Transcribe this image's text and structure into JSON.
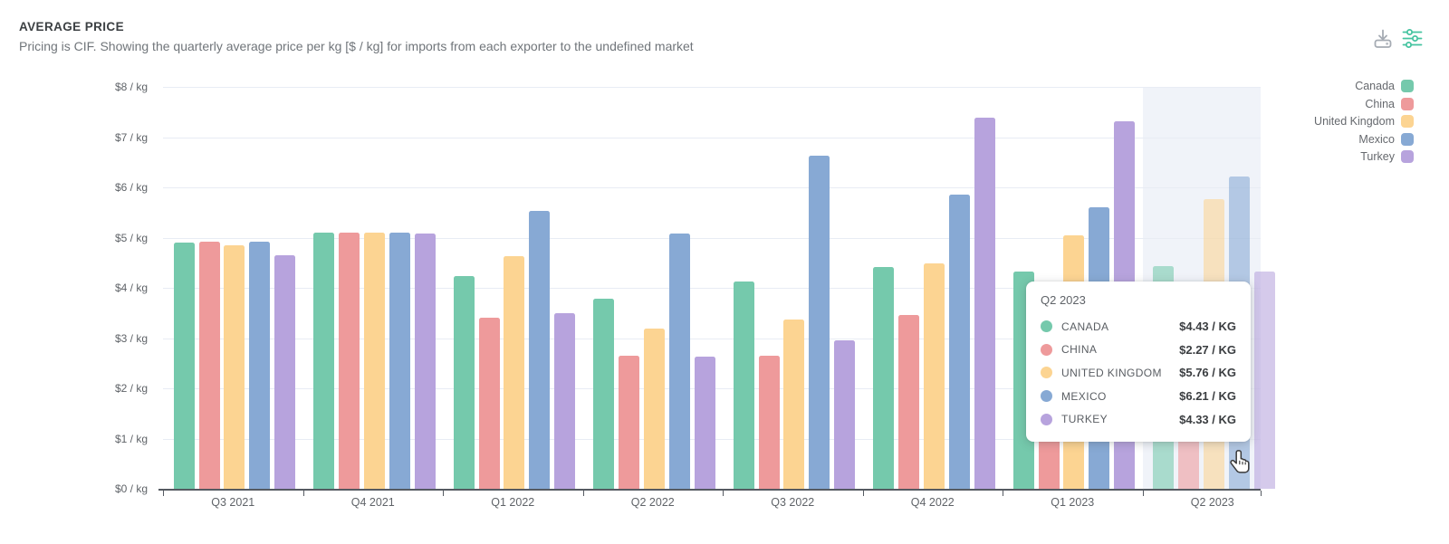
{
  "header": {
    "title": "AVERAGE PRICE",
    "subtitle": "Pricing is CIF. Showing the quarterly average price per kg [$ / kg] for imports from each exporter to the undefined market"
  },
  "toolbar": {
    "download_icon": "download-tray-icon",
    "settings_icon": "filter-sliders-icon",
    "download_color": "#a5abb3",
    "settings_color": "#45c4a0"
  },
  "colors": {
    "canada": "#75c9ac",
    "china": "#ee9a9b",
    "united_kingdom": "#fcd492",
    "mexico": "#87a9d4",
    "turkey": "#b7a3dd",
    "gridline": "#e8ecf4",
    "axis": "#555a61",
    "highlight_band": "#f0f3f9"
  },
  "legend": {
    "items": [
      {
        "label": "Canada",
        "color": "#75c9ac"
      },
      {
        "label": "China",
        "color": "#ee9a9b"
      },
      {
        "label": "United Kingdom",
        "color": "#fcd492"
      },
      {
        "label": "Mexico",
        "color": "#87a9d4"
      },
      {
        "label": "Turkey",
        "color": "#b7a3dd"
      }
    ]
  },
  "chart_data": {
    "type": "bar",
    "title": "AVERAGE PRICE",
    "xlabel": "",
    "ylabel": "$ / kg",
    "ylim": [
      0,
      8
    ],
    "grid": true,
    "legend_position": "top-right",
    "y_tick_labels": [
      "$0 / kg",
      "$1 / kg",
      "$2 / kg",
      "$3 / kg",
      "$4 / kg",
      "$5 / kg",
      "$6 / kg",
      "$7 / kg",
      "$8 / kg"
    ],
    "categories": [
      "Q3 2021",
      "Q4 2021",
      "Q1 2022",
      "Q2 2022",
      "Q3 2022",
      "Q4 2022",
      "Q1 2023",
      "Q2 2023"
    ],
    "highlighted_category": "Q2 2023",
    "series": [
      {
        "name": "Canada",
        "color": "#75c9ac",
        "values": [
          4.9,
          5.1,
          4.24,
          3.79,
          4.12,
          4.41,
          4.33,
          4.43
        ]
      },
      {
        "name": "China",
        "color": "#ee9a9b",
        "values": [
          4.91,
          5.1,
          3.41,
          2.65,
          2.65,
          3.46,
          2.6,
          2.27
        ]
      },
      {
        "name": "United Kingdom",
        "color": "#fcd492",
        "values": [
          4.85,
          5.1,
          4.63,
          3.19,
          3.37,
          4.48,
          5.05,
          5.76
        ]
      },
      {
        "name": "Mexico",
        "color": "#87a9d4",
        "values": [
          4.92,
          5.1,
          5.53,
          5.08,
          6.63,
          5.85,
          5.61,
          6.21
        ]
      },
      {
        "name": "Turkey",
        "color": "#b7a3dd",
        "values": [
          4.65,
          5.08,
          3.5,
          2.63,
          2.95,
          7.38,
          7.31,
          4.33
        ]
      }
    ]
  },
  "tooltip": {
    "title": "Q2 2023",
    "rows": [
      {
        "name": "CANADA",
        "value": "$4.43 / KG",
        "color": "#75c9ac"
      },
      {
        "name": "CHINA",
        "value": "$2.27 / KG",
        "color": "#ee9a9b"
      },
      {
        "name": "UNITED KINGDOM",
        "value": "$5.76 / KG",
        "color": "#fcd492"
      },
      {
        "name": "MEXICO",
        "value": "$6.21 / KG",
        "color": "#87a9d4"
      },
      {
        "name": "TURKEY",
        "value": "$4.33 / KG",
        "color": "#b7a3dd"
      }
    ]
  }
}
